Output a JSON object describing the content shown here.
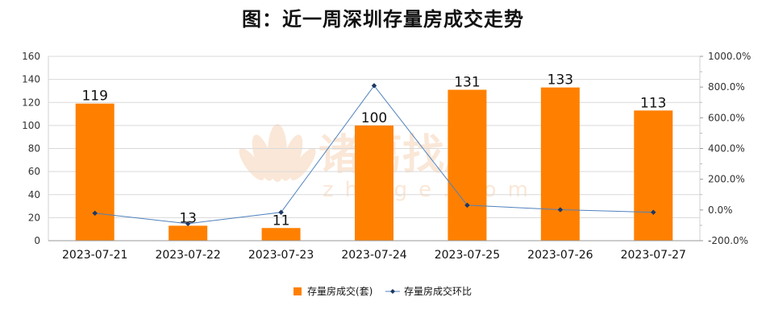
{
  "chart_data": {
    "type": "bar",
    "title": "图：近一周深圳存量房成交走势",
    "watermark": "诸葛找房 zhuge.com",
    "categories": [
      "2023-07-21",
      "2023-07-22",
      "2023-07-23",
      "2023-07-24",
      "2023-07-25",
      "2023-07-26",
      "2023-07-27"
    ],
    "y_left": {
      "ylim": [
        0,
        160
      ],
      "ticks": [
        "0",
        "20",
        "40",
        "60",
        "80",
        "100",
        "120",
        "140",
        "160"
      ]
    },
    "y_right": {
      "ylim": [
        -200,
        1000
      ],
      "ticks": [
        "-200.0%",
        "0.0%",
        "200.0%",
        "400.0%",
        "600.0%",
        "800.0%",
        "1000.0%"
      ]
    },
    "series": [
      {
        "name": "存量房成交(套)",
        "kind": "bar",
        "axis": "left",
        "color": "#FF8000",
        "values": [
          119,
          13,
          11,
          100,
          131,
          133,
          113
        ],
        "labels": [
          "119",
          "13",
          "11",
          "100",
          "131",
          "133",
          "113"
        ]
      },
      {
        "name": "存量房成交环比",
        "kind": "line",
        "axis": "right",
        "color": "#4F81BD",
        "values": [
          -21.2,
          -89.1,
          -15.4,
          809.1,
          31.0,
          1.5,
          -15.0
        ]
      }
    ],
    "grid": true,
    "legend": "bottom"
  }
}
